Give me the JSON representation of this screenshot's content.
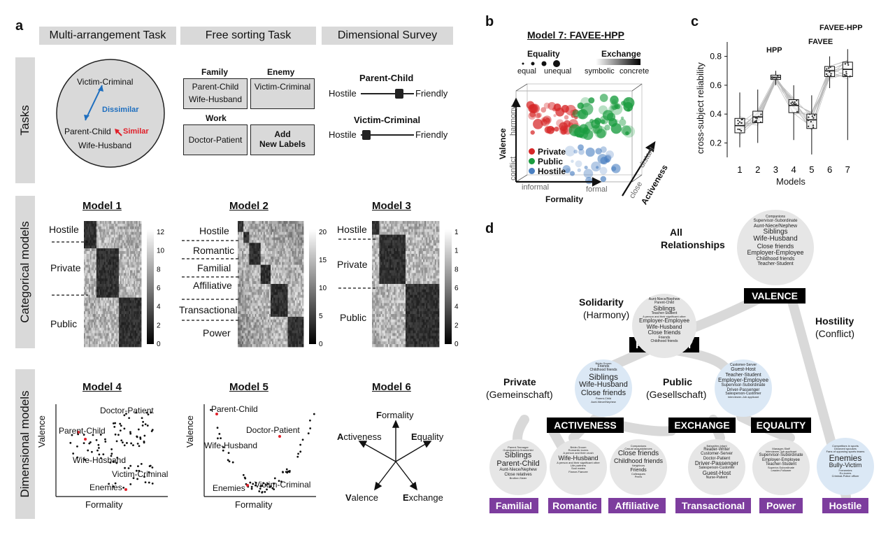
{
  "panels": {
    "a": "a",
    "b": "b",
    "c": "c",
    "d": "d"
  },
  "panel_a": {
    "headers": [
      "Multi-arrangement Task",
      "Free sorting Task",
      "Dimensional Survey"
    ],
    "row_labels": [
      "Tasks",
      "Categorical models",
      "Dimensional  models"
    ],
    "multi": {
      "top": "Victim-Criminal",
      "dissimilar": "Dissimilar",
      "similar": "Similar",
      "pc": "Parent-Child",
      "wh": "Wife-Husband"
    },
    "sorting": {
      "family": "Family",
      "family_items": [
        "Parent-Child",
        "Wife-Husband"
      ],
      "enemy": "Enemy",
      "enemy_item": "Victim-Criminal",
      "work": "Work",
      "work_item": "Doctor-Patient",
      "add1": "Add",
      "add2": "New Labels"
    },
    "survey": {
      "s1_title": "Parent-Child",
      "s1_left": "Hostile",
      "s1_right": "Friendly",
      "s1_value": 0.72,
      "s2_title": "Victim-Criminal",
      "s2_left": "Hostile",
      "s2_right": "Friendly",
      "s2_value": 0.1
    },
    "model1": {
      "title": "Model 1",
      "labels": [
        "Hostile",
        "Private",
        "Public"
      ],
      "ticks": [
        "12",
        "10",
        "8",
        "6",
        "4",
        "2",
        "0"
      ]
    },
    "model2": {
      "title": "Model 2",
      "labels": [
        "Hostile",
        "Romantic",
        "Familial",
        "Affiliative",
        "Transactional",
        "Power"
      ],
      "ticks": [
        "20",
        "15",
        "10",
        "5",
        "0"
      ]
    },
    "model3": {
      "title": "Model 3",
      "labels": [
        "Hostile",
        "Private",
        "Public"
      ],
      "ticks": [
        "12",
        "10",
        "8",
        "6",
        "4",
        "2",
        "0"
      ]
    },
    "model4": {
      "title": "Model 4",
      "ylabel": "Valence",
      "xlabel": "Formality",
      "labels": [
        "Doctor-Patient",
        "Parent-Child",
        "Wife-Husband",
        "Victim-Criminal",
        "Enemies"
      ]
    },
    "model5": {
      "title": "Model 5",
      "ylabel": "Valence",
      "xlabel": "Formality",
      "labels": [
        "Parent-Child",
        "Doctor-Patient",
        "Wife-Husband",
        "Victim-Criminal",
        "Enemies"
      ]
    },
    "model6": {
      "title": "Model 6",
      "axes": [
        "Formality",
        "Equality",
        "Exchange",
        "Valence",
        "Activeness"
      ],
      "initials": [
        "F",
        "E",
        "E",
        "V",
        "A"
      ],
      "rests": [
        "ormality",
        "quality",
        "xchange",
        "alence",
        "ctiveness"
      ]
    }
  },
  "panel_b": {
    "title": "Model 7: FAVEE-HPP",
    "equality": "Equality",
    "eq_left": "equal",
    "eq_right": "unequal",
    "exchange": "Exchange",
    "ex_left": "symbolic",
    "ex_right": "concrete",
    "valence": "Valence",
    "harmony": "harmony",
    "conflict": "conflict",
    "formality": "Formality",
    "informal": "informal",
    "formal": "formal",
    "activeness": "Activeness",
    "close": "close",
    "distant": "distant",
    "legend": [
      {
        "name": "Private",
        "color": "#d62728"
      },
      {
        "name": "Public",
        "color": "#1a9c3f"
      },
      {
        "name": "Hostile",
        "color": "#4a7fc1"
      }
    ]
  },
  "panel_c": {
    "ylabel": "cross-subject reliability",
    "xlabel": "Models",
    "yticks": [
      "0.2",
      "0.4",
      "0.6",
      "0.8"
    ],
    "annot": {
      "hpp": "HPP",
      "favee": "FAVEE",
      "faveehpp": "FAVEE-HPP"
    }
  },
  "chart_data": {
    "type": "box",
    "categories": [
      "1",
      "2",
      "3",
      "4",
      "5",
      "6",
      "7"
    ],
    "ylim": [
      0.1,
      0.9
    ],
    "ylabel": "cross-subject reliability",
    "xlabel": "Models",
    "boxes": [
      {
        "min": 0.17,
        "q1": 0.27,
        "median": 0.32,
        "q3": 0.37,
        "max": 0.55
      },
      {
        "min": 0.2,
        "q1": 0.34,
        "median": 0.38,
        "q3": 0.42,
        "max": 0.57
      },
      {
        "min": 0.6,
        "q1": 0.64,
        "median": 0.655,
        "q3": 0.67,
        "max": 0.7
      },
      {
        "min": 0.22,
        "q1": 0.41,
        "median": 0.46,
        "q3": 0.5,
        "max": 0.6
      },
      {
        "min": 0.12,
        "q1": 0.3,
        "median": 0.36,
        "q3": 0.4,
        "max": 0.53
      },
      {
        "min": 0.58,
        "q1": 0.66,
        "median": 0.7,
        "q3": 0.73,
        "max": 0.8
      },
      {
        "min": 0.22,
        "q1": 0.66,
        "median": 0.71,
        "q3": 0.76,
        "max": 0.85
      }
    ]
  },
  "panel_d": {
    "all": "All",
    "relationships": "Relationships",
    "solidarity": "Solidarity",
    "harmony": "(Harmony)",
    "hostility": "Hostility",
    "conflict": "(Conflict)",
    "private": "Private",
    "gemein": "(Gemeinschaft)",
    "public": "Public",
    "gesell": "(Gesellschaft)",
    "dims": {
      "valence": "VALENCE",
      "formality": "FORMALITY",
      "activeness": "ACTIVENESS",
      "exchange": "EXCHANGE",
      "equality": "EQUALITY"
    },
    "categories": [
      "Familial",
      "Romantic",
      "Affiliative",
      "Transactional",
      "Power",
      "Hostile"
    ],
    "bub_all": [
      "Companions",
      "Supervisor-Subordinate",
      "Aunt-Niece/Nephew",
      "Siblings",
      "Wife-Husband",
      "Close friends",
      "Employer-Employee",
      "Childhood friends",
      "Teacher-Student"
    ],
    "bub_sol": [
      "Aunt-Niece/Nephew",
      "Parent-Child",
      "Siblings",
      "Teacher-Student",
      "A person and their significant other",
      "Employer-Employee",
      "Wife-Husband",
      "Close friends",
      "Friends",
      "Childhood friends",
      "Bride-Groom"
    ],
    "bub_priv": [
      "Bride-Groom",
      "Friends",
      "Childhood friends",
      "Siblings",
      "Wife-Husband",
      "Close friends",
      "Parent-Child",
      "Aunt-Niece/Nephew",
      "Romantic lovers"
    ],
    "bub_pub": [
      "Customer-Server",
      "Guest-Host",
      "Teacher-Student",
      "Employer-Employee",
      "Supervisor-Subordinate",
      "Driver-Passenger",
      "Salesperson-Customer",
      "Interviewer-Job applicant",
      "Doctor-Patient"
    ],
    "bub_fam": [
      "Parent-Teenager",
      "Grandparent-Grandchild",
      "Siblings",
      "Parent-Child",
      "Aunt-Niece/Nephew",
      "Close relatives",
      "Brother-Sister",
      "Cousins"
    ],
    "bub_rom": [
      "Bride-Groom",
      "Romantic lovers",
      "A person and their crush",
      "Wife-Husband",
      "A person and their significant other",
      "Life partners",
      "Soul mates",
      "Fiance-Fiancee",
      "Long-distance lovers"
    ],
    "bub_aff": [
      "Companions",
      "Casual acquaintances",
      "Close friends",
      "Childhood friends",
      "Neighbors",
      "Friends",
      "Colleagues",
      "Peers",
      "Classmates"
    ],
    "bub_trans": [
      "Babysitter-Infant",
      "Reader-Writer",
      "Customer-Server",
      "Doctor-Patient",
      "Driver-Passenger",
      "Salesperson-Customer",
      "Guest-Host",
      "Nurse-Patient"
    ],
    "bub_pow": [
      "Manager-Staff",
      "Interviewer-Job applicant",
      "Supervisor-Subordinate",
      "Employer-Employee",
      "Teacher-Student",
      "Superior-Subordinate",
      "Leader-Follower"
    ],
    "bub_host": [
      "Competitors in sports",
      "Divorced spouses",
      "Fans of opposing sports teams",
      "Enemies",
      "Bully-Victim",
      "Frenemies",
      "Ex-lovers",
      "Criminal-Police officer",
      "Political rivals"
    ]
  }
}
